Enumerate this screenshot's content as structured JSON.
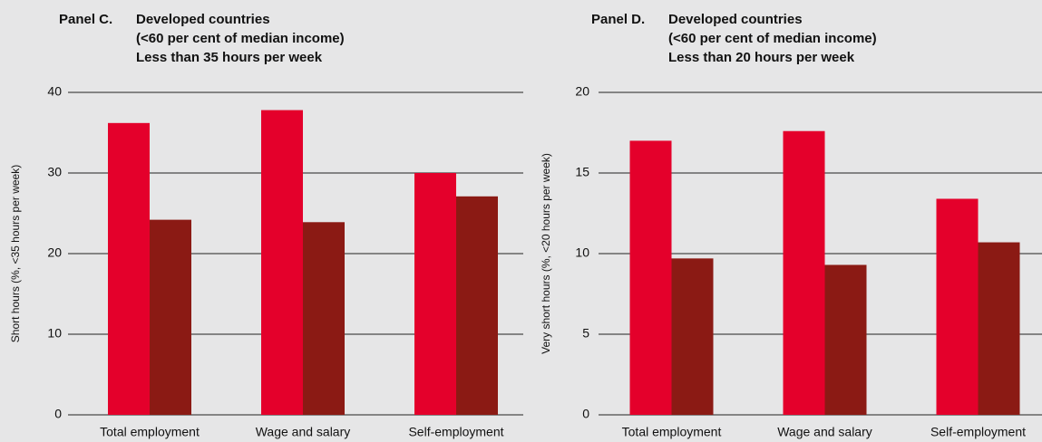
{
  "chart_data": [
    {
      "type": "bar",
      "panel": "Panel C.",
      "title": [
        "Developed countries",
        "(<60 per cent of median income)",
        "Less than 35 hours per week"
      ],
      "ylabel": "Short hours (%, <35 hours per week)",
      "categories": [
        "Total employment",
        "Wage and salary",
        "Self-employment"
      ],
      "series": [
        {
          "color": "#e4002b",
          "values": [
            36.2,
            37.8,
            30.0
          ]
        },
        {
          "color": "#8b1a14",
          "values": [
            24.2,
            23.9,
            27.1
          ]
        }
      ],
      "ylim": [
        0,
        40
      ],
      "yticks": [
        0,
        10,
        20,
        30,
        40
      ],
      "grid": true
    },
    {
      "type": "bar",
      "panel": "Panel D.",
      "title": [
        "Developed countries",
        "(<60 per cent of median income)",
        "Less than 20 hours per week"
      ],
      "ylabel": "Very short hours (%, <20 hours per week)",
      "categories": [
        "Total employment",
        "Wage and salary",
        "Self-employment"
      ],
      "series": [
        {
          "color": "#e4002b",
          "values": [
            17.0,
            17.6,
            13.4
          ]
        },
        {
          "color": "#8b1a14",
          "values": [
            9.7,
            9.3,
            10.7
          ]
        }
      ],
      "ylim": [
        0,
        20
      ],
      "yticks": [
        0,
        5,
        10,
        15,
        20
      ],
      "grid": true
    }
  ]
}
